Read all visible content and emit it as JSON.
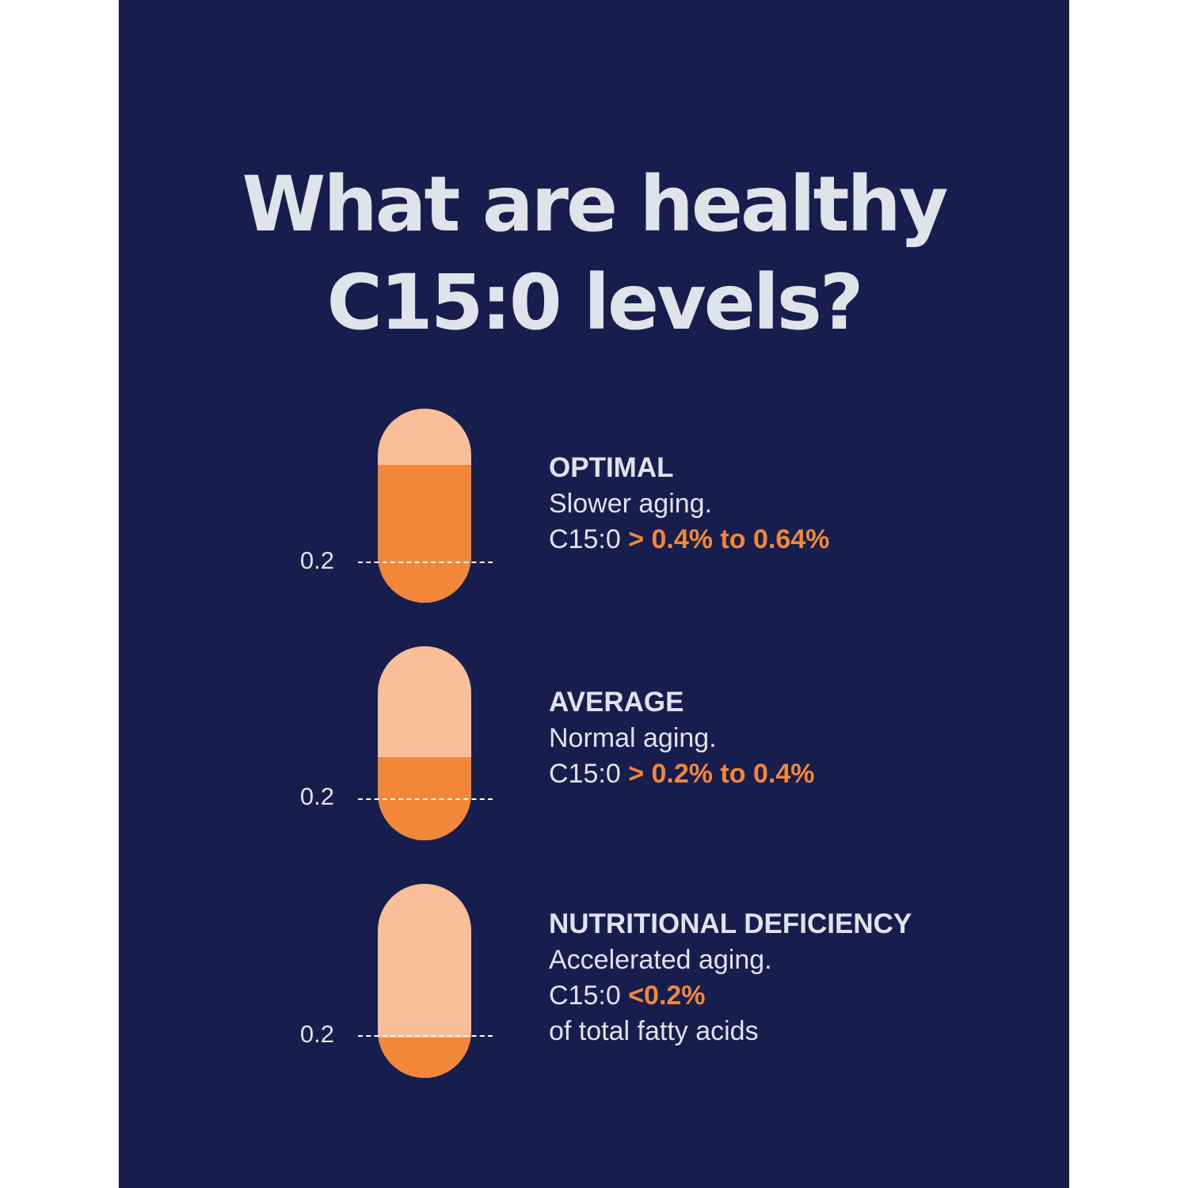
{
  "title": "What are healthy C15:0 levels?",
  "colors": {
    "background": "#171e4e",
    "capsule_light": "#f9bf98",
    "capsule_fill": "#f2873a",
    "text": "#dfe4ea",
    "accent": "#f2873a"
  },
  "levels": [
    {
      "heading": "OPTIMAL",
      "description": "Slower aging.",
      "prefix": "C15:0",
      "range": "> 0.4% to 0.64%",
      "tick_label": "0.2",
      "fill_fraction": 0.71
    },
    {
      "heading": "AVERAGE",
      "description": "Normal aging.",
      "prefix": "C15:0",
      "range": "> 0.2% to 0.4%",
      "tick_label": "0.2",
      "fill_fraction": 0.43
    },
    {
      "heading": "NUTRITIONAL DEFICIENCY",
      "description": "Accelerated aging.",
      "prefix": "C15:0",
      "range": "<0.2%",
      "extra": "of total fatty acids",
      "tick_label": "0.2",
      "fill_fraction": 0.21
    }
  ]
}
